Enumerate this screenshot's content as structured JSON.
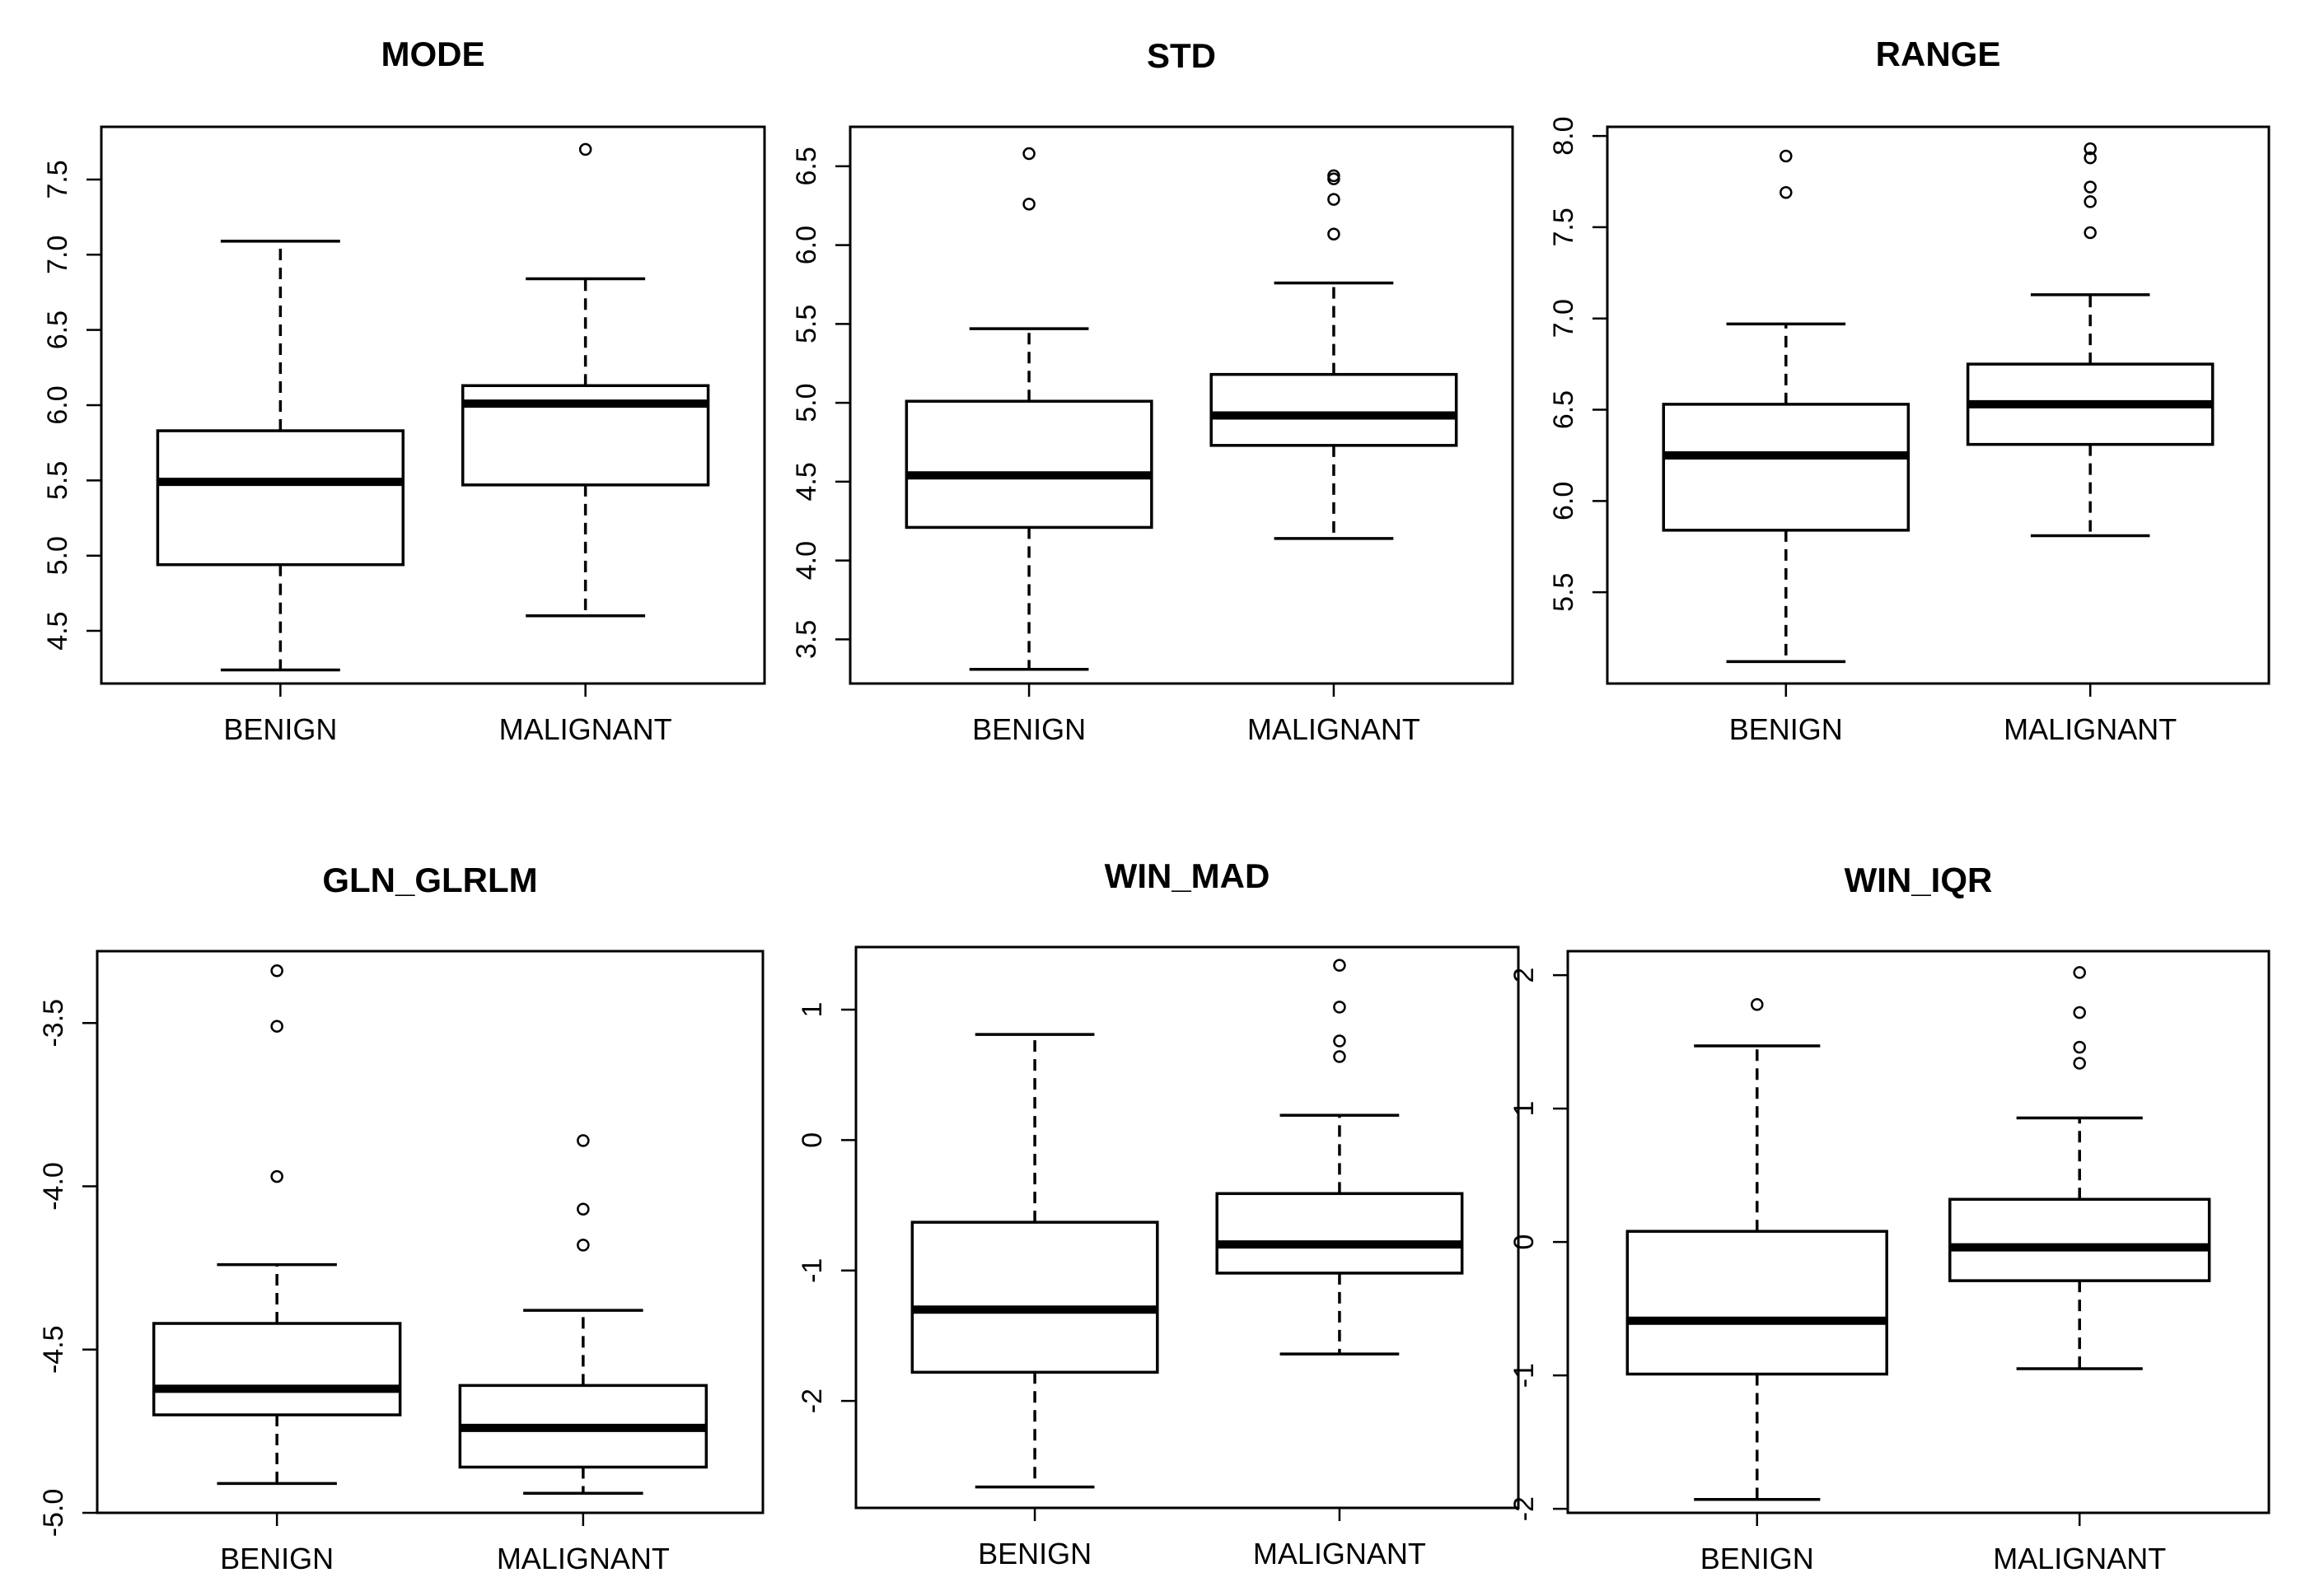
{
  "chart_data": [
    {
      "type": "box",
      "title": "MODE",
      "categories": [
        "BENIGN",
        "MALIGNANT"
      ],
      "ylim": [
        4.15,
        7.85
      ],
      "yticks": [
        4.5,
        5.0,
        5.5,
        6.0,
        6.5,
        7.0,
        7.5
      ],
      "ytick_labels": [
        "4.5",
        "5.0",
        "5.5",
        "6.0",
        "6.5",
        "7.0",
        "7.5"
      ],
      "boxes": [
        {
          "category": "BENIGN",
          "whisker_low": 4.24,
          "q1": 4.94,
          "median": 5.49,
          "q3": 5.83,
          "whisker_high": 7.09,
          "outliers": []
        },
        {
          "category": "MALIGNANT",
          "whisker_low": 4.6,
          "q1": 5.47,
          "median": 6.01,
          "q3": 6.13,
          "whisker_high": 6.84,
          "outliers": [
            7.7
          ]
        }
      ]
    },
    {
      "type": "box",
      "title": "STD",
      "categories": [
        "BENIGN",
        "MALIGNANT"
      ],
      "ylim": [
        3.22,
        6.75
      ],
      "yticks": [
        3.5,
        4.0,
        4.5,
        5.0,
        5.5,
        6.0,
        6.5
      ],
      "ytick_labels": [
        "3.5",
        "4.0",
        "4.5",
        "5.0",
        "5.5",
        "6.0",
        "6.5"
      ],
      "boxes": [
        {
          "category": "BENIGN",
          "whisker_low": 3.31,
          "q1": 4.21,
          "median": 4.54,
          "q3": 5.01,
          "whisker_high": 5.47,
          "outliers": [
            6.26,
            6.58
          ]
        },
        {
          "category": "MALIGNANT",
          "whisker_low": 4.14,
          "q1": 4.73,
          "median": 4.92,
          "q3": 5.18,
          "whisker_high": 5.76,
          "outliers": [
            6.07,
            6.29,
            6.42,
            6.44
          ]
        }
      ]
    },
    {
      "type": "box",
      "title": "RANGE",
      "categories": [
        "BENIGN",
        "MALIGNANT"
      ],
      "ylim": [
        5.0,
        8.05
      ],
      "yticks": [
        5.5,
        6.0,
        6.5,
        7.0,
        7.5,
        8.0
      ],
      "ytick_labels": [
        "5.5",
        "6.0",
        "6.5",
        "7.0",
        "7.5",
        "8.0"
      ],
      "boxes": [
        {
          "category": "BENIGN",
          "whisker_low": 5.12,
          "q1": 5.84,
          "median": 6.25,
          "q3": 6.53,
          "whisker_high": 6.97,
          "outliers": [
            7.69,
            7.89
          ]
        },
        {
          "category": "MALIGNANT",
          "whisker_low": 5.81,
          "q1": 6.31,
          "median": 6.53,
          "q3": 6.75,
          "whisker_high": 7.13,
          "outliers": [
            7.47,
            7.64,
            7.72,
            7.88,
            7.93
          ]
        }
      ]
    },
    {
      "type": "box",
      "title": "GLN_GLRLM",
      "categories": [
        "BENIGN",
        "MALIGNANT"
      ],
      "ylim": [
        -5.0,
        -3.28
      ],
      "yticks": [
        -5.0,
        -4.5,
        -4.0,
        -3.5
      ],
      "ytick_labels": [
        "-5.0",
        "-4.5",
        "-4.0",
        "-3.5"
      ],
      "boxes": [
        {
          "category": "BENIGN",
          "whisker_low": -4.91,
          "q1": -4.7,
          "median": -4.62,
          "q3": -4.42,
          "whisker_high": -4.24,
          "outliers": [
            -3.97,
            -3.51,
            -3.34
          ]
        },
        {
          "category": "MALIGNANT",
          "whisker_low": -4.94,
          "q1": -4.86,
          "median": -4.74,
          "q3": -4.61,
          "whisker_high": -4.38,
          "outliers": [
            -4.18,
            -4.07,
            -3.86
          ]
        }
      ]
    },
    {
      "type": "box",
      "title": "WIN_MAD",
      "categories": [
        "BENIGN",
        "MALIGNANT"
      ],
      "ylim": [
        -2.82,
        1.48
      ],
      "yticks": [
        -2,
        -1,
        0,
        1
      ],
      "ytick_labels": [
        "-2",
        "-1",
        "0",
        "1"
      ],
      "boxes": [
        {
          "category": "BENIGN",
          "whisker_low": -2.66,
          "q1": -1.78,
          "median": -1.3,
          "q3": -0.63,
          "whisker_high": 0.81,
          "outliers": []
        },
        {
          "category": "MALIGNANT",
          "whisker_low": -1.64,
          "q1": -1.02,
          "median": -0.8,
          "q3": -0.41,
          "whisker_high": 0.19,
          "outliers": [
            0.64,
            0.76,
            1.02,
            1.34
          ]
        }
      ]
    },
    {
      "type": "box",
      "title": "WIN_IQR",
      "categories": [
        "BENIGN",
        "MALIGNANT"
      ],
      "ylim": [
        -2.03,
        2.18
      ],
      "yticks": [
        -2,
        -1,
        0,
        1,
        2
      ],
      "ytick_labels": [
        "-2",
        "-1",
        "0",
        "1",
        "2"
      ],
      "boxes": [
        {
          "category": "BENIGN",
          "whisker_low": -1.93,
          "q1": -0.99,
          "median": -0.59,
          "q3": 0.08,
          "whisker_high": 1.47,
          "outliers": [
            1.78
          ]
        },
        {
          "category": "MALIGNANT",
          "whisker_low": -0.95,
          "q1": -0.29,
          "median": -0.04,
          "q3": 0.32,
          "whisker_high": 0.93,
          "outliers": [
            1.34,
            1.46,
            1.72,
            2.02
          ]
        }
      ]
    }
  ]
}
